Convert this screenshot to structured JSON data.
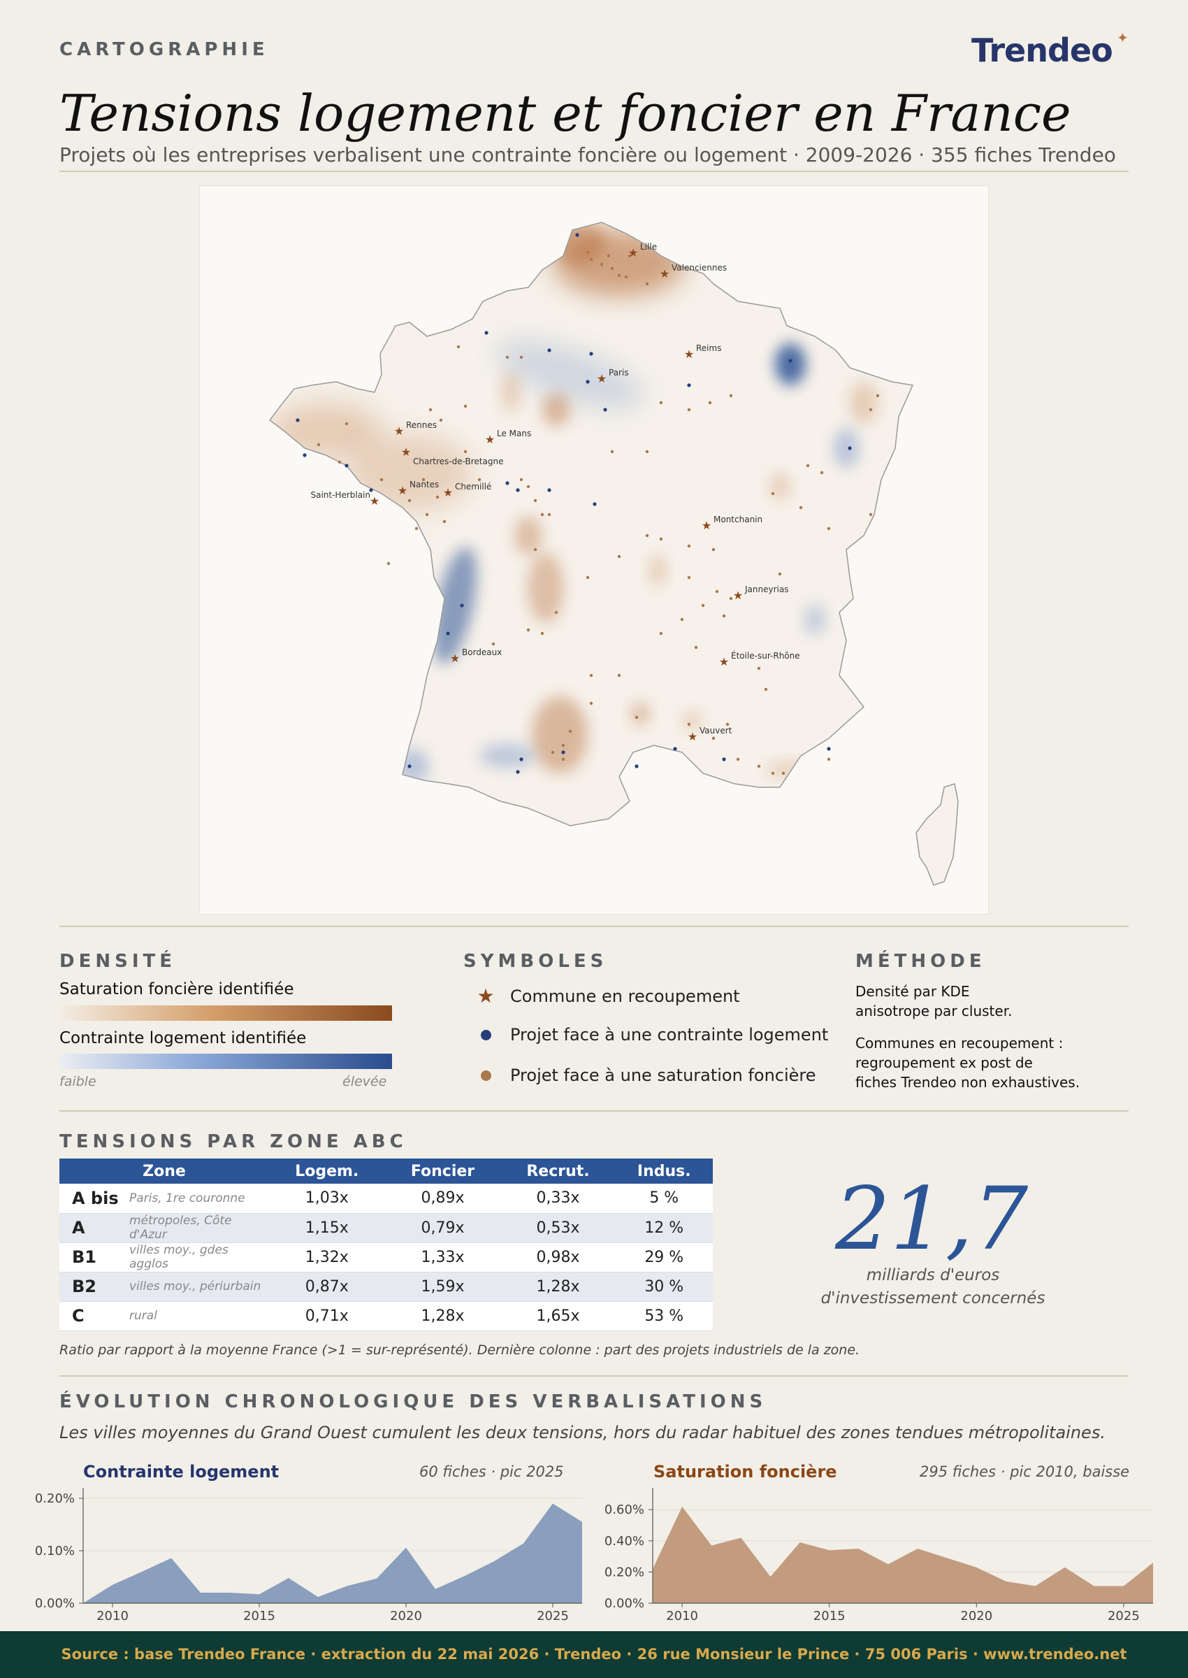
{
  "header": {
    "kicker": "CARTOGRAPHIE",
    "title": "Tensions logement et foncier en France",
    "subtitle": "Projets où les entreprises verbalisent une contrainte foncière ou logement  ·  2009-2026  ·  355 fiches Trendeo",
    "logo": "Trendeo"
  },
  "map": {
    "cities": [
      {
        "name": "Lille"
      },
      {
        "name": "Valenciennes"
      },
      {
        "name": "Reims"
      },
      {
        "name": "Paris"
      },
      {
        "name": "Rennes"
      },
      {
        "name": "Le Mans"
      },
      {
        "name": "Chartres-de-Bretagne"
      },
      {
        "name": "Nantes"
      },
      {
        "name": "Chemillé"
      },
      {
        "name": "Saint-Herblain"
      },
      {
        "name": "Montchanin"
      },
      {
        "name": "Janneyrias"
      },
      {
        "name": "Bordeaux"
      },
      {
        "name": "Étoile-sur-Rhône"
      },
      {
        "name": "Vauvert"
      }
    ],
    "colors": {
      "foncier": "#8b4c20",
      "logement": "#27407a",
      "star": "#8b4a1f"
    }
  },
  "legend": {
    "density": {
      "heading": "DENSITÉ",
      "foncier_label": "Saturation foncière identifiée",
      "logement_label": "Contrainte logement identifiée",
      "low": "faible",
      "high": "élevée"
    },
    "symbols": {
      "heading": "SYMBOLES",
      "items": [
        {
          "label": "Commune en recoupement",
          "icon": "star-icon"
        },
        {
          "label": "Projet face à une contrainte logement",
          "icon": "blue-dot-icon"
        },
        {
          "label": "Projet face à une saturation foncière",
          "icon": "brown-dot-icon"
        }
      ]
    },
    "method": {
      "heading": "MÉTHODE",
      "p1": [
        "Densité par KDE",
        "anisotrope par cluster."
      ],
      "p2": [
        "Communes en recoupement :",
        "regroupement ex post de",
        "fiches Trendeo non exhaustives."
      ]
    }
  },
  "zones": {
    "heading": "TENSIONS PAR ZONE ABC",
    "columns": [
      "Zone",
      "Logem.",
      "Foncier",
      "Recrut.",
      "Indus."
    ],
    "rows": [
      {
        "zone": "A bis",
        "desc": "Paris, 1re couronne",
        "logem": "1,03x",
        "foncier": "0,89x",
        "recrut": "0,33x",
        "indus": "5 %"
      },
      {
        "zone": "A",
        "desc": "métropoles, Côte d'Azur",
        "logem": "1,15x",
        "foncier": "0,79x",
        "recrut": "0,53x",
        "indus": "12 %"
      },
      {
        "zone": "B1",
        "desc": "villes moy., gdes agglos",
        "logem": "1,32x",
        "foncier": "1,33x",
        "recrut": "0,98x",
        "indus": "29 %"
      },
      {
        "zone": "B2",
        "desc": "villes moy., périurbain",
        "logem": "0,87x",
        "foncier": "1,59x",
        "recrut": "1,28x",
        "indus": "30 %"
      },
      {
        "zone": "C",
        "desc": "rural",
        "logem": "0,71x",
        "foncier": "1,28x",
        "recrut": "1,65x",
        "indus": "53 %"
      }
    ],
    "note": "Ratio par rapport à la moyenne France (>1 = sur-représenté). Dernière colonne : part des projets industriels de la zone.",
    "big_number": "21,7",
    "big_caption_1": "milliards d'euros",
    "big_caption_2": "d'investissement concernés"
  },
  "evolution": {
    "heading": "ÉVOLUTION CHRONOLOGIQUE DES VERBALISATIONS",
    "subtitle": "Les villes moyennes du Grand Ouest cumulent les deux tensions, hors du radar habituel des zones tendues métropolitaines."
  },
  "chart_data": [
    {
      "type": "area",
      "title": "Contrainte logement",
      "info": "60 fiches  ·  pic 2025",
      "color": "#8a9ebd",
      "title_color": "#25366e",
      "x": [
        2009,
        2010,
        2011,
        2012,
        2013,
        2014,
        2015,
        2016,
        2017,
        2018,
        2019,
        2020,
        2021,
        2022,
        2023,
        2024,
        2025,
        2026
      ],
      "values": [
        0.0,
        0.035,
        0.06,
        0.086,
        0.02,
        0.02,
        0.017,
        0.048,
        0.012,
        0.033,
        0.047,
        0.106,
        0.027,
        0.052,
        0.08,
        0.114,
        0.19,
        0.155
      ],
      "ylim": [
        0,
        0.22
      ],
      "yticks": [
        0,
        0.1,
        0.2
      ],
      "ytick_labels": [
        "0.00%",
        "0.10%",
        "0.20%"
      ],
      "xticks": [
        2010,
        2015,
        2020,
        2025
      ]
    },
    {
      "type": "area",
      "title": "Saturation foncière",
      "info": "295 fiches  ·  pic 2010, baisse",
      "color": "#c39c80",
      "title_color": "#8b4715",
      "x": [
        2009,
        2010,
        2011,
        2012,
        2013,
        2014,
        2015,
        2016,
        2017,
        2018,
        2019,
        2020,
        2021,
        2022,
        2023,
        2024,
        2025,
        2026
      ],
      "values": [
        0.22,
        0.62,
        0.37,
        0.42,
        0.17,
        0.39,
        0.34,
        0.35,
        0.25,
        0.35,
        0.29,
        0.23,
        0.14,
        0.11,
        0.23,
        0.11,
        0.11,
        0.26
      ],
      "ylim": [
        0,
        0.74
      ],
      "yticks": [
        0,
        0.2,
        0.4,
        0.6
      ],
      "ytick_labels": [
        "0.00%",
        "0.20%",
        "0.40%",
        "0.60%"
      ],
      "xticks": [
        2010,
        2015,
        2020,
        2025
      ]
    }
  ],
  "footer": "Source : base Trendeo France  ·  extraction du 22 mai 2026  ·  Trendeo · 26 rue Monsieur le Prince · 75 006 Paris  ·  www.trendeo.net"
}
